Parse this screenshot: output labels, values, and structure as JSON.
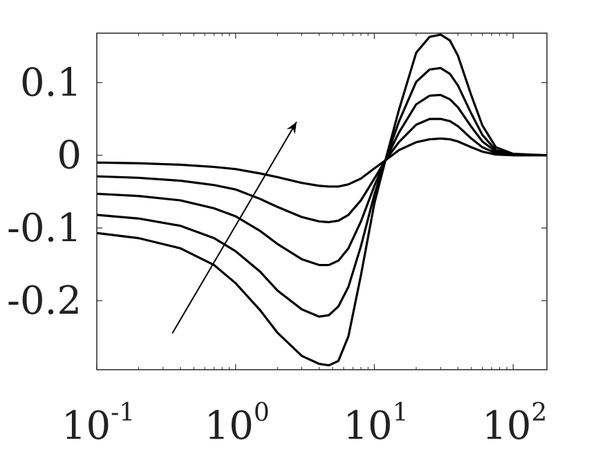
{
  "chart_data": {
    "type": "line",
    "title": "",
    "xlabel": "",
    "ylabel": "",
    "x_scale": "log",
    "xlim": [
      0.1,
      175
    ],
    "ylim": [
      -0.295,
      0.168
    ],
    "grid": false,
    "legend": "none",
    "line_color": "#000000",
    "x_ticks": [
      {
        "value": 0.1,
        "base": "10",
        "exp": "-1"
      },
      {
        "value": 1,
        "base": "10",
        "exp": "0"
      },
      {
        "value": 10,
        "base": "10",
        "exp": "1"
      },
      {
        "value": 100,
        "base": "10",
        "exp": "2"
      }
    ],
    "y_ticks": [
      {
        "value": 0.1,
        "label": "0.1"
      },
      {
        "value": 0,
        "label": "0"
      },
      {
        "value": -0.1,
        "label": "-0.1"
      },
      {
        "value": -0.2,
        "label": "-0.2"
      }
    ],
    "x": [
      0.1,
      0.2,
      0.4,
      0.7,
      1,
      1.5,
      2,
      3,
      4,
      4.7,
      5.5,
      6.5,
      8,
      10,
      12,
      15,
      20,
      25,
      30,
      35,
      40,
      50,
      60,
      75,
      100,
      175
    ],
    "series": [
      {
        "values": [
          -0.01,
          -0.011,
          -0.013,
          -0.016,
          -0.019,
          -0.025,
          -0.03,
          -0.038,
          -0.042,
          -0.043,
          -0.043,
          -0.04,
          -0.032,
          -0.018,
          -0.007,
          0.007,
          0.018,
          0.022,
          0.023,
          0.022,
          0.019,
          0.011,
          0.005,
          0.001,
          0.0,
          0.0
        ]
      },
      {
        "values": [
          -0.029,
          -0.031,
          -0.035,
          -0.041,
          -0.047,
          -0.06,
          -0.071,
          -0.085,
          -0.091,
          -0.092,
          -0.09,
          -0.082,
          -0.062,
          -0.032,
          -0.007,
          0.018,
          0.042,
          0.05,
          0.05,
          0.047,
          0.04,
          0.023,
          0.011,
          0.003,
          0.0,
          0.0
        ]
      },
      {
        "values": [
          -0.053,
          -0.056,
          -0.062,
          -0.073,
          -0.084,
          -0.104,
          -0.122,
          -0.143,
          -0.151,
          -0.151,
          -0.145,
          -0.128,
          -0.091,
          -0.042,
          -0.007,
          0.031,
          0.07,
          0.082,
          0.083,
          0.077,
          0.066,
          0.039,
          0.019,
          0.005,
          0.001,
          0.0
        ]
      },
      {
        "values": [
          -0.082,
          -0.087,
          -0.097,
          -0.114,
          -0.132,
          -0.16,
          -0.186,
          -0.212,
          -0.222,
          -0.22,
          -0.208,
          -0.181,
          -0.125,
          -0.054,
          -0.007,
          0.046,
          0.101,
          0.118,
          0.12,
          0.112,
          0.096,
          0.057,
          0.028,
          0.007,
          0.001,
          0.0
        ]
      },
      {
        "values": [
          -0.107,
          -0.114,
          -0.128,
          -0.151,
          -0.176,
          -0.213,
          -0.244,
          -0.276,
          -0.287,
          -0.289,
          -0.283,
          -0.249,
          -0.165,
          -0.066,
          -0.007,
          0.062,
          0.141,
          0.163,
          0.166,
          0.158,
          0.137,
          0.082,
          0.041,
          0.011,
          0.002,
          0.0
        ]
      }
    ],
    "annotation": {
      "type": "arrow",
      "from": {
        "x": 0.35,
        "y": -0.245
      },
      "to": {
        "x": 2.75,
        "y": 0.046
      }
    }
  }
}
